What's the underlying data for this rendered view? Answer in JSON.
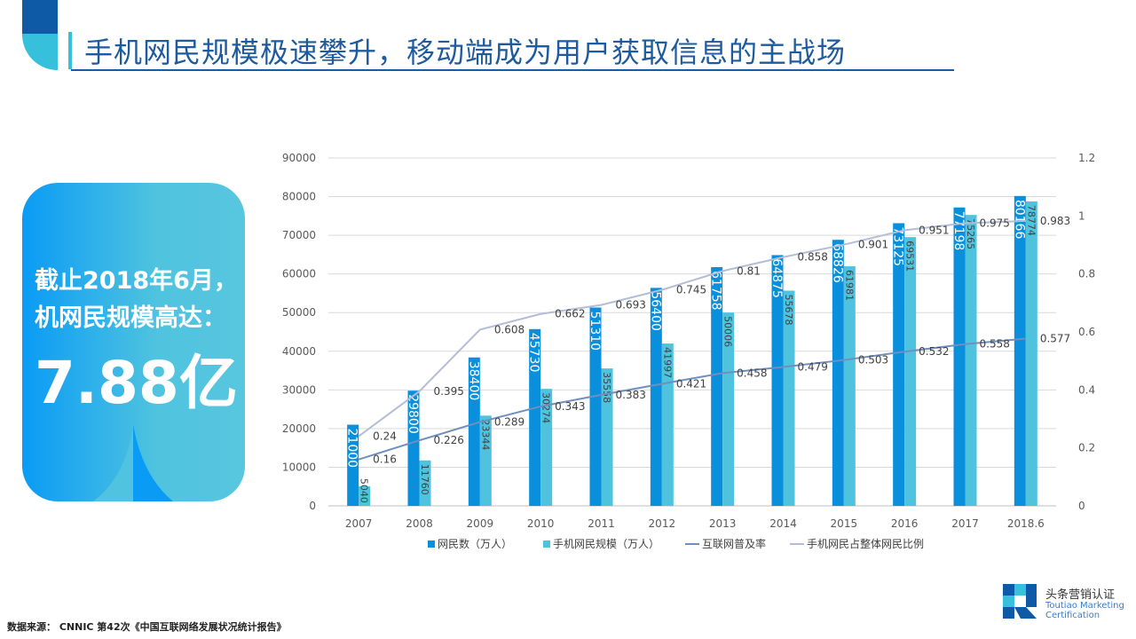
{
  "header": {
    "title": "手机网民规模极速攀升，移动端成为用户获取信息的主战场"
  },
  "card": {
    "line1": "截止2018年6月，",
    "line2": "机网民规模高达：",
    "big": "7.88亿"
  },
  "footer": {
    "source": "数据来源： CNNIC 第42次《中国互联网络发展状况统计报告》"
  },
  "logo": {
    "cn": "头条营销认证",
    "en1": "Toutiao Marketing",
    "en2": "Certification"
  },
  "colors": {
    "bar1": "#0a8fdc",
    "bar2": "#4fc3de",
    "line1": "#6f8fbf",
    "line2": "#b4bdd6"
  },
  "chart_data": {
    "type": "bar",
    "categories": [
      "2007",
      "2008",
      "2009",
      "2010",
      "2011",
      "2012",
      "2013",
      "2014",
      "2015",
      "2016",
      "2017",
      "2018.6"
    ],
    "y_left": {
      "range": [
        0,
        90000
      ],
      "ticks": [
        "0",
        "10000",
        "20000",
        "30000",
        "40000",
        "50000",
        "60000",
        "70000",
        "80000",
        "90000"
      ]
    },
    "y_right": {
      "range": [
        0,
        1.2
      ],
      "ticks": [
        "0",
        "0.2",
        "0.4",
        "0.6",
        "0.8",
        "1",
        "1.2"
      ]
    },
    "grid": true,
    "legend_position": "bottom",
    "series": [
      {
        "name": "网民数（万人）",
        "type": "bar",
        "values": [
          21000,
          29800,
          38400,
          45730,
          51310,
          56400,
          61758,
          64875,
          68826,
          73125,
          77198,
          80166
        ]
      },
      {
        "name": "手机网民规模（万人）",
        "type": "bar",
        "values": [
          5040,
          11760,
          23344,
          30274,
          35558,
          41997,
          50006,
          55678,
          61981,
          69531,
          75265,
          78774
        ]
      },
      {
        "name": "互联网普及率",
        "type": "line",
        "axis": "right",
        "values": [
          0.16,
          0.226,
          0.289,
          0.343,
          0.383,
          0.421,
          0.458,
          0.479,
          0.503,
          0.532,
          0.558,
          0.577
        ]
      },
      {
        "name": "手机网民占整体网民比例",
        "type": "line",
        "axis": "right",
        "values": [
          0.24,
          0.395,
          0.608,
          0.662,
          0.693,
          0.745,
          0.81,
          0.858,
          0.901,
          0.951,
          0.975,
          0.983
        ]
      }
    ]
  }
}
